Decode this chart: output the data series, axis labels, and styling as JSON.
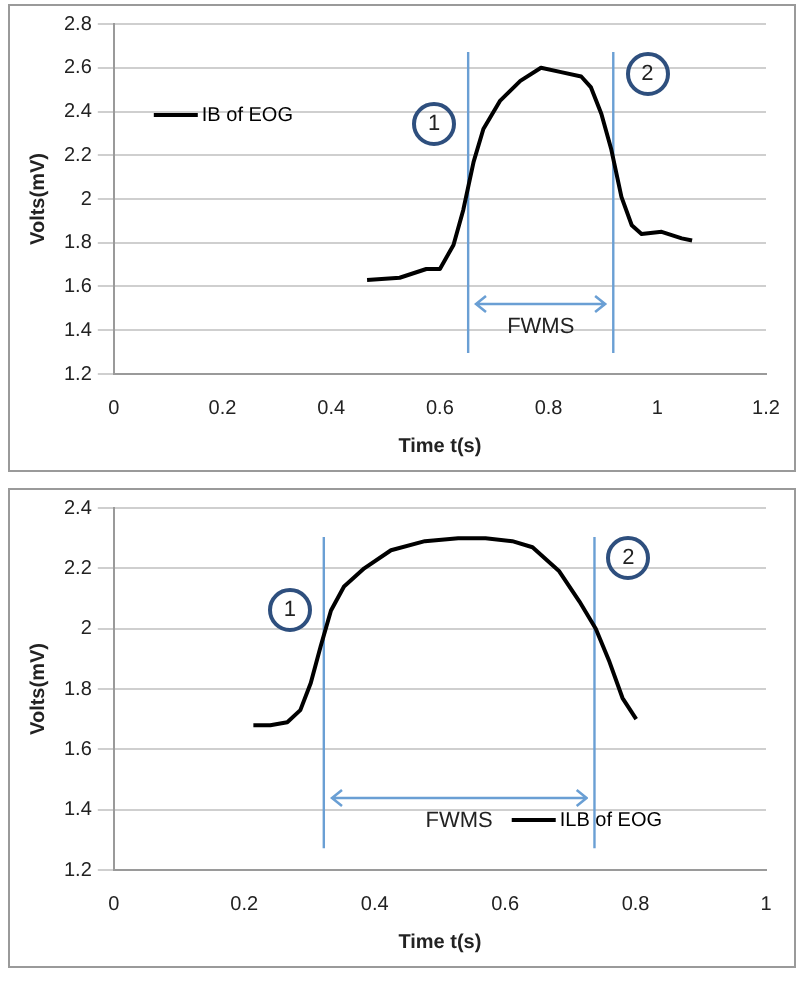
{
  "chart_data": [
    {
      "type": "line",
      "xlabel": "Time t(s)",
      "ylabel": "Volts(mV)",
      "xlim": [
        0,
        1.2
      ],
      "xticks": [
        0,
        0.2,
        0.4,
        0.6,
        0.8,
        1,
        1.2
      ],
      "ylim": [
        1.2,
        2.8
      ],
      "yticks": [
        1.2,
        1.4,
        1.6,
        1.8,
        2,
        2.2,
        2.4,
        2.6,
        2.8
      ],
      "grid": "y",
      "legend": "left",
      "marker": "none",
      "line_style": "solid",
      "series": [
        {
          "name": "IB of EOG",
          "color": "#000000",
          "x": [
            0.466,
            0.526,
            0.575,
            0.6,
            0.625,
            0.643,
            0.662,
            0.68,
            0.711,
            0.748,
            0.786,
            0.823,
            0.86,
            0.878,
            0.897,
            0.915,
            0.934,
            0.953,
            0.971,
            1.008,
            1.045,
            1.064
          ],
          "values": [
            1.63,
            1.64,
            1.68,
            1.68,
            1.79,
            1.95,
            2.17,
            2.32,
            2.45,
            2.54,
            2.6,
            2.58,
            2.56,
            2.51,
            2.39,
            2.23,
            2.01,
            1.88,
            1.84,
            1.85,
            1.82,
            1.81
          ]
        }
      ],
      "ref_lines": [
        {
          "axis": "x",
          "value": 0.652,
          "color": "#6a9fd4"
        },
        {
          "axis": "x",
          "value": 0.919,
          "color": "#6a9fd4"
        }
      ],
      "annotations": [
        "1",
        "2",
        "FWMS"
      ]
    },
    {
      "type": "line",
      "xlabel": "Time t(s)",
      "ylabel": "Volts(mV)",
      "xlim": [
        0,
        1
      ],
      "xticks": [
        0,
        0.2,
        0.4,
        0.6,
        0.8,
        1
      ],
      "ylim": [
        1.2,
        2.4
      ],
      "yticks": [
        1.2,
        1.4,
        1.6,
        1.8,
        2,
        2.2,
        2.4
      ],
      "grid": "y",
      "legend": "bottom right",
      "marker": "none",
      "line_style": "solid",
      "series": [
        {
          "name": "ILB of EOG",
          "color": "#000000",
          "x": [
            0.214,
            0.24,
            0.266,
            0.286,
            0.302,
            0.317,
            0.333,
            0.353,
            0.384,
            0.425,
            0.477,
            0.528,
            0.57,
            0.611,
            0.642,
            0.683,
            0.714,
            0.739,
            0.76,
            0.78,
            0.801
          ],
          "values": [
            1.68,
            1.68,
            1.69,
            1.73,
            1.82,
            1.94,
            2.06,
            2.14,
            2.2,
            2.26,
            2.29,
            2.3,
            2.3,
            2.29,
            2.27,
            2.19,
            2.09,
            2,
            1.89,
            1.77,
            1.7
          ]
        }
      ],
      "ref_lines": [
        {
          "axis": "x",
          "value": 0.322,
          "color": "#6a9fd4"
        },
        {
          "axis": "x",
          "value": 0.737,
          "color": "#6a9fd4"
        }
      ],
      "annotations": [
        "1",
        "2",
        "FWMS"
      ]
    }
  ]
}
